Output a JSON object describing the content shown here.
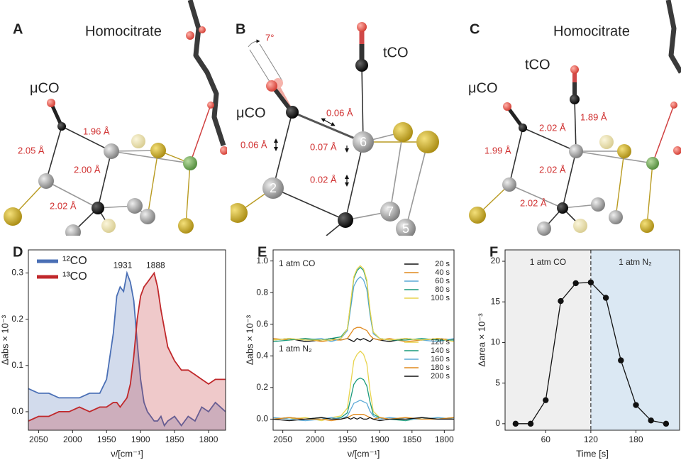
{
  "panels": [
    {
      "letter": "A",
      "labels": [
        "Homocitrate",
        "μCO",
        "1.96 Å",
        "2.05 Å",
        "2.00 Å",
        "2.02 Å"
      ]
    },
    {
      "letter": "B",
      "labels": [
        "7°",
        "tCO",
        "μCO",
        "0.06 Å",
        "0.06 Å",
        "0.07 Å",
        "0.02 Å",
        "6",
        "2",
        "7",
        "5"
      ]
    },
    {
      "letter": "C",
      "labels": [
        "Homocitrate",
        "tCO",
        "μCO",
        "2.02 Å",
        "1.89 Å",
        "1.99 Å",
        "2.02 Å",
        "2.02 Å"
      ]
    }
  ],
  "chart_data": [
    {
      "type": "area",
      "panel": "D",
      "xlabel": "ν/[cm⁻¹]",
      "ylabel": "Δabs × 10⁻³",
      "x": [
        2065,
        2050,
        2035,
        2020,
        2005,
        1990,
        1975,
        1960,
        1950,
        1940,
        1935,
        1930,
        1925,
        1920,
        1915,
        1910,
        1905,
        1900,
        1895,
        1890,
        1885,
        1880,
        1875,
        1870,
        1865,
        1860,
        1850,
        1840,
        1830,
        1820,
        1810,
        1800,
        1790,
        1775
      ],
      "series": [
        {
          "name": "¹²CO",
          "color": "#4a6fb5",
          "values": [
            0.05,
            0.04,
            0.04,
            0.03,
            0.03,
            0.03,
            0.04,
            0.04,
            0.07,
            0.17,
            0.25,
            0.27,
            0.26,
            0.3,
            0.28,
            0.24,
            0.15,
            0.07,
            0.02,
            0.0,
            -0.01,
            -0.02,
            -0.02,
            -0.01,
            -0.03,
            -0.02,
            -0.01,
            -0.03,
            -0.01,
            -0.02,
            0.01,
            0.0,
            0.02,
            0.0
          ]
        },
        {
          "name": "¹³CO",
          "color": "#c0282b",
          "values": [
            -0.02,
            -0.01,
            -0.01,
            0.0,
            0.0,
            0.01,
            0.0,
            0.01,
            0.01,
            0.02,
            0.02,
            0.01,
            0.02,
            0.03,
            0.06,
            0.12,
            0.2,
            0.25,
            0.27,
            0.28,
            0.29,
            0.3,
            0.27,
            0.22,
            0.18,
            0.14,
            0.11,
            0.09,
            0.09,
            0.08,
            0.07,
            0.06,
            0.07,
            0.07
          ]
        }
      ],
      "annotations": [
        "1931",
        "1888"
      ],
      "xlim": [
        2065,
        1775
      ],
      "xticks": [
        2050,
        2000,
        1950,
        1900,
        1850,
        1800
      ],
      "ylim": [
        -0.04,
        0.35
      ],
      "yticks": [
        {
          "value": 0,
          "label": "0.0"
        },
        0.1,
        0.2,
        0.3
      ],
      "legend": "upper left"
    },
    {
      "type": "line",
      "panel": "E",
      "xlabel": "ν/[cm⁻¹]",
      "ylabel": "Δabs × 10⁻³",
      "x": [
        2065,
        2040,
        2015,
        1990,
        1975,
        1960,
        1950,
        1945,
        1940,
        1935,
        1930,
        1925,
        1920,
        1915,
        1910,
        1900,
        1885,
        1860,
        1835,
        1810,
        1785
      ],
      "series": [
        {
          "name": "20 s",
          "color": "#111111",
          "values": [
            0.5,
            0.51,
            0.49,
            0.5,
            0.51,
            0.5,
            0.51,
            0.5,
            0.49,
            0.51,
            0.5,
            0.51,
            0.5,
            0.49,
            0.51,
            0.5,
            0.49,
            0.51,
            0.5,
            0.51,
            0.5
          ]
        },
        {
          "name": "40 s",
          "color": "#e08a1e",
          "values": [
            0.51,
            0.5,
            0.51,
            0.49,
            0.5,
            0.5,
            0.51,
            0.54,
            0.57,
            0.58,
            0.58,
            0.57,
            0.56,
            0.53,
            0.51,
            0.5,
            0.51,
            0.49,
            0.5,
            0.51,
            0.5
          ]
        },
        {
          "name": "60 s",
          "color": "#5aa9d6",
          "values": [
            0.5,
            0.51,
            0.5,
            0.51,
            0.49,
            0.51,
            0.56,
            0.7,
            0.84,
            0.88,
            0.9,
            0.88,
            0.82,
            0.66,
            0.54,
            0.51,
            0.5,
            0.51,
            0.5,
            0.49,
            0.51
          ]
        },
        {
          "name": "80 s",
          "color": "#1a9a7a",
          "values": [
            0.49,
            0.5,
            0.51,
            0.5,
            0.51,
            0.52,
            0.57,
            0.73,
            0.89,
            0.94,
            0.96,
            0.94,
            0.87,
            0.68,
            0.55,
            0.51,
            0.5,
            0.5,
            0.51,
            0.5,
            0.5
          ]
        },
        {
          "name": "100 s",
          "color": "#e8d44d",
          "values": [
            0.5,
            0.51,
            0.5,
            0.5,
            0.5,
            0.51,
            0.57,
            0.74,
            0.9,
            0.95,
            0.97,
            0.95,
            0.88,
            0.69,
            0.55,
            0.51,
            0.5,
            0.51,
            0.5,
            0.51,
            0.49
          ]
        },
        {
          "name": "120 s",
          "color": "#e8d44d",
          "values": [
            0.01,
            0.0,
            0.01,
            -0.01,
            0.01,
            0.02,
            0.07,
            0.22,
            0.37,
            0.41,
            0.43,
            0.41,
            0.35,
            0.18,
            0.05,
            0.01,
            0.0,
            0.01,
            0.0,
            0.01,
            0.0
          ]
        },
        {
          "name": "140 s",
          "color": "#1a9a7a",
          "values": [
            0.0,
            0.01,
            0.0,
            0.01,
            0.0,
            0.01,
            0.04,
            0.13,
            0.22,
            0.25,
            0.26,
            0.25,
            0.21,
            0.11,
            0.03,
            0.01,
            0.0,
            -0.01,
            0.01,
            0.0,
            0.01
          ]
        },
        {
          "name": "160 s",
          "color": "#5aa9d6",
          "values": [
            0.01,
            0.0,
            -0.01,
            0.0,
            0.01,
            0.0,
            0.02,
            0.06,
            0.1,
            0.11,
            0.12,
            0.11,
            0.1,
            0.05,
            0.02,
            0.0,
            0.01,
            0.0,
            0.0,
            0.01,
            0.0
          ]
        },
        {
          "name": "180 s",
          "color": "#e08a1e",
          "values": [
            0.0,
            0.01,
            0.0,
            0.0,
            -0.01,
            0.0,
            0.01,
            0.02,
            0.03,
            0.03,
            0.03,
            0.03,
            0.02,
            0.01,
            0.0,
            0.01,
            0.0,
            0.01,
            0.0,
            0.0,
            0.01
          ]
        },
        {
          "name": "200 s",
          "color": "#111111",
          "values": [
            0.0,
            -0.01,
            0.0,
            0.01,
            0.0,
            0.0,
            0.01,
            0.0,
            0.01,
            0.0,
            0.01,
            0.0,
            0.0,
            0.01,
            0.0,
            -0.01,
            0.0,
            0.0,
            0.01,
            0.0,
            0.0
          ]
        }
      ],
      "annotations": [
        "1 atm CO",
        "1 atm N₂"
      ],
      "xlim": [
        2065,
        1785
      ],
      "xticks": [
        2050,
        2000,
        1950,
        1900,
        1850,
        1800
      ],
      "ylim": [
        -0.07,
        1.07
      ],
      "yticks": [
        {
          "value": 0,
          "label": "0.0"
        },
        {
          "value": 0.2,
          "label": "0.2"
        },
        {
          "value": 0.4,
          "label": "0.4"
        },
        {
          "value": 0.6,
          "label": "0.6"
        },
        {
          "value": 0.8,
          "label": "0.8"
        },
        {
          "value": 1,
          "label": "1.0"
        }
      ],
      "legend": "upper right"
    },
    {
      "type": "line",
      "panel": "F",
      "xlabel": "Time [s]",
      "ylabel": "Δarea × 10⁻³",
      "markers": true,
      "x": [
        20,
        40,
        60,
        80,
        100,
        120,
        140,
        160,
        180,
        200,
        220
      ],
      "series": [
        {
          "color": "#111111",
          "values": [
            0,
            0,
            2.9,
            15.1,
            17.3,
            17.4,
            15.5,
            7.8,
            2.3,
            0.4,
            0.0
          ]
        }
      ],
      "annotations": [
        "1 atm CO",
        "1 atm N₂"
      ],
      "divider": 120,
      "region_colors": [
        "#efefef",
        "#dbe8f3"
      ],
      "xlim": [
        6,
        238
      ],
      "xticks": [
        60,
        120,
        180
      ],
      "ylim": [
        -0.8,
        21.4
      ],
      "yticks": [
        0,
        5,
        10,
        15,
        20
      ]
    }
  ]
}
